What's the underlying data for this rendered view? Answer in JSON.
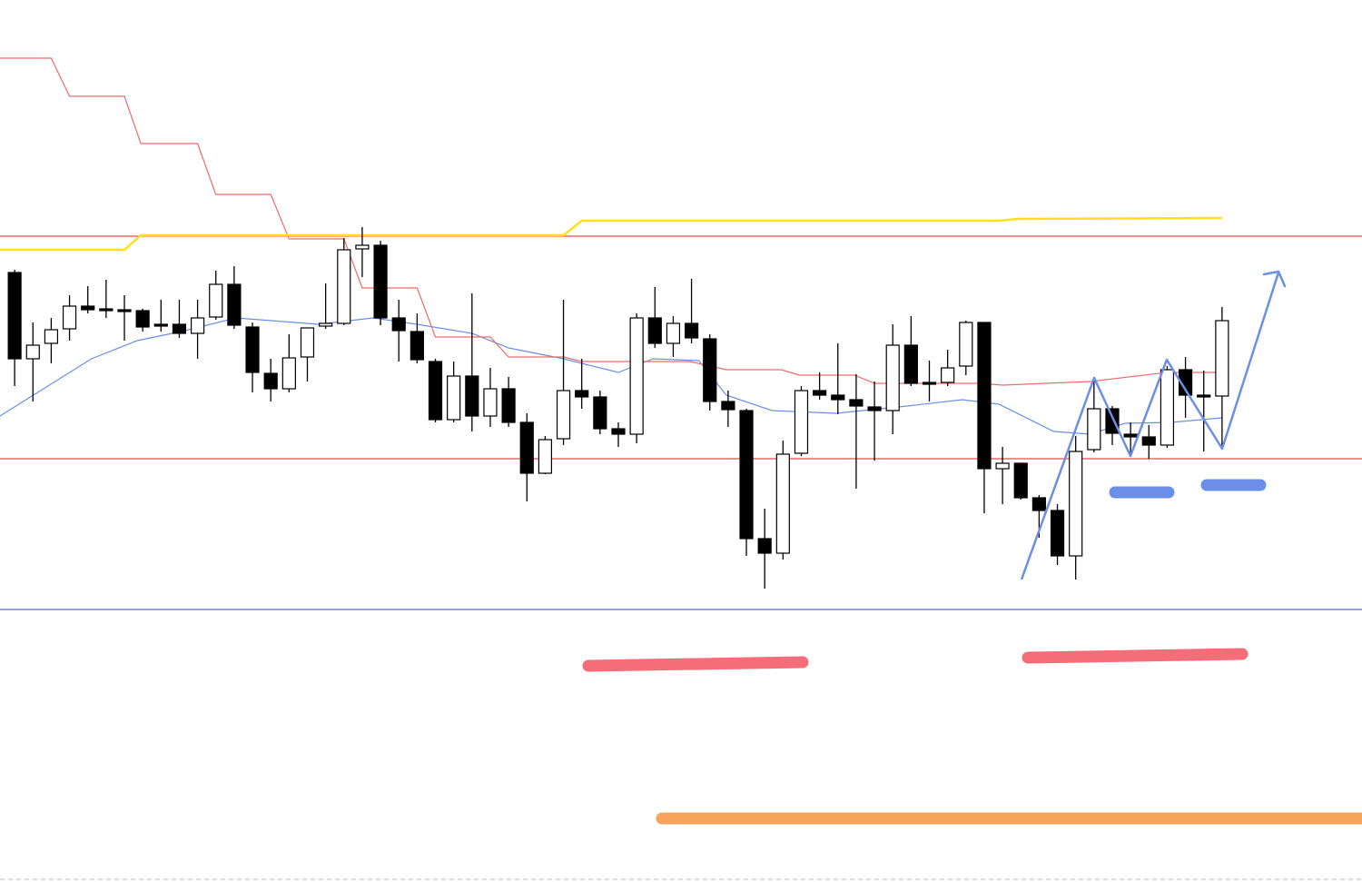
{
  "chart_data": {
    "type": "candlestick",
    "xlim": [
      -0.8,
      73.65
    ],
    "ylim": [
      3,
      100
    ],
    "up_color": "#ffffff",
    "down_color": "#000000",
    "open": [
      70.0,
      60.5,
      62.2,
      63.8,
      66.3,
      66.0,
      65.9,
      65.8,
      64.3,
      64.3,
      63.3,
      65.1,
      68.7,
      64.0,
      58.9,
      57.2,
      60.7,
      64.1,
      64.4,
      72.6,
      73.0,
      65.0,
      63.5,
      60.2,
      53.8,
      58.6,
      54.2,
      57.2,
      53.5,
      47.9,
      51.7,
      57.0,
      56.3,
      52.8,
      52.2,
      65.0,
      62.2,
      64.4,
      62.7,
      55.8,
      54.8,
      40.7,
      39.1,
      50.1,
      57.0,
      56.5,
      56.0,
      55.2,
      54.8,
      62.0,
      57.9,
      57.9,
      59.7,
      64.5,
      48.4,
      49.0,
      45.2,
      43.8,
      38.8,
      50.5,
      55.0,
      52.2,
      51.9,
      51.0,
      59.3,
      56.5,
      56.4
    ],
    "high": [
      70.3,
      64.5,
      65.0,
      67.5,
      68.5,
      69.2,
      67.5,
      66.0,
      67.0,
      67.0,
      67.0,
      70.2,
      70.7,
      64.5,
      60.5,
      63.2,
      63.9,
      68.8,
      73.8,
      75.0,
      73.5,
      67.0,
      65.5,
      60.5,
      60.2,
      67.7,
      59.5,
      58.5,
      54.5,
      52.0,
      67.0,
      60.5,
      57.0,
      53.5,
      65.5,
      68.4,
      65.2,
      69.3,
      63.2,
      57.0,
      55.0,
      44.0,
      51.5,
      57.5,
      59.0,
      62.2,
      58.8,
      58.0,
      64.3,
      65.2,
      60.3,
      61.5,
      64.7,
      64.5,
      50.8,
      49.0,
      45.5,
      44.5,
      52.0,
      58.5,
      55.3,
      53.5,
      53.2,
      59.7,
      60.7,
      59.2,
      66.2
    ],
    "low": [
      57.5,
      55.8,
      60.0,
      62.5,
      65.5,
      65.0,
      62.5,
      63.5,
      63.5,
      62.8,
      60.5,
      64.8,
      63.8,
      56.8,
      55.8,
      56.8,
      58.0,
      63.8,
      64.2,
      69.5,
      64.2,
      60.2,
      60.0,
      53.5,
      53.5,
      52.5,
      53.0,
      53.0,
      44.8,
      47.8,
      51.0,
      55.0,
      52.2,
      50.8,
      51.2,
      61.7,
      60.7,
      62.2,
      54.8,
      53.0,
      38.8,
      35.2,
      38.4,
      49.8,
      56.0,
      54.4,
      46.2,
      49.3,
      52.2,
      57.5,
      55.8,
      57.5,
      58.7,
      43.5,
      44.5,
      45.0,
      40.8,
      37.8,
      36.2,
      50.2,
      51.0,
      49.7,
      49.5,
      50.7,
      54.0,
      50.3,
      50.5
    ],
    "close": [
      60.5,
      62.0,
      63.7,
      66.3,
      65.9,
      65.9,
      65.8,
      64.0,
      64.2,
      63.3,
      65.0,
      68.7,
      64.2,
      59.0,
      57.2,
      60.6,
      63.9,
      64.4,
      72.5,
      73.0,
      65.0,
      63.6,
      60.4,
      53.8,
      58.6,
      54.2,
      57.2,
      53.5,
      47.9,
      51.6,
      57.0,
      56.3,
      52.8,
      52.2,
      65.0,
      62.2,
      64.4,
      62.8,
      55.8,
      54.9,
      40.7,
      39.1,
      50.0,
      57.0,
      56.5,
      56.0,
      55.3,
      54.8,
      62.0,
      57.8,
      57.7,
      59.5,
      64.5,
      48.4,
      49.0,
      45.2,
      43.8,
      38.8,
      50.3,
      55.0,
      52.3,
      51.9,
      51.0,
      59.3,
      56.5,
      56.3,
      64.7
    ],
    "lines": [
      {
        "color": "#6b8fe8",
        "x": [
          -0.8,
          4.2,
          6.7,
          9.1,
          12.1,
          16.6,
          19.6,
          22.0,
          25.0,
          27.0,
          30.0,
          33.0,
          34.9,
          37.4,
          38.9,
          41.4,
          44.9,
          48.8,
          51.8,
          53.8,
          56.8,
          58.8,
          60.7,
          63.2,
          66.0
        ],
        "values": [
          54.2,
          60.5,
          62.5,
          63.5,
          65.0,
          64.3,
          65.0,
          64.3,
          63.3,
          61.7,
          60.5,
          59.0,
          60.5,
          60.3,
          56.5,
          54.8,
          54.5,
          55.3,
          56.0,
          55.5,
          52.5,
          52.2,
          53.4,
          53.5,
          54.0
        ]
      },
      {
        "color": "#f06a6a",
        "x": [
          -0.8,
          2.0,
          3.0,
          6.0,
          6.9,
          10.0,
          11.0,
          14.0,
          15.0,
          18.0,
          19.0,
          22.0,
          23.0,
          26.0,
          27.0,
          30.0,
          31.0,
          36.9,
          38.9,
          41.9,
          42.9,
          45.9,
          47.0,
          52.8,
          54.0,
          58.8,
          63.0,
          65.7
        ],
        "values": [
          93.6,
          93.6,
          89.4,
          89.4,
          84.2,
          84.2,
          78.6,
          78.6,
          73.7,
          73.7,
          68.3,
          68.3,
          62.9,
          62.9,
          60.7,
          60.7,
          60.2,
          60.2,
          59.3,
          59.3,
          58.7,
          58.7,
          57.8,
          57.8,
          57.6,
          58.0,
          59.0,
          59.0
        ]
      },
      {
        "color": "#ffe01a",
        "x": [
          -0.8,
          6.0,
          6.9,
          30.0,
          31.0,
          53.8,
          54.8,
          66.0
        ],
        "values": [
          72.5,
          72.5,
          74.1,
          74.1,
          75.7,
          75.7,
          75.9,
          76.0
        ]
      }
    ],
    "hlines": [
      {
        "value": 74.0,
        "color": "#f04848"
      },
      {
        "value": 49.5,
        "color": "#f04848"
      },
      {
        "value": 32.9,
        "color": "#4a72d8"
      }
    ]
  }
}
